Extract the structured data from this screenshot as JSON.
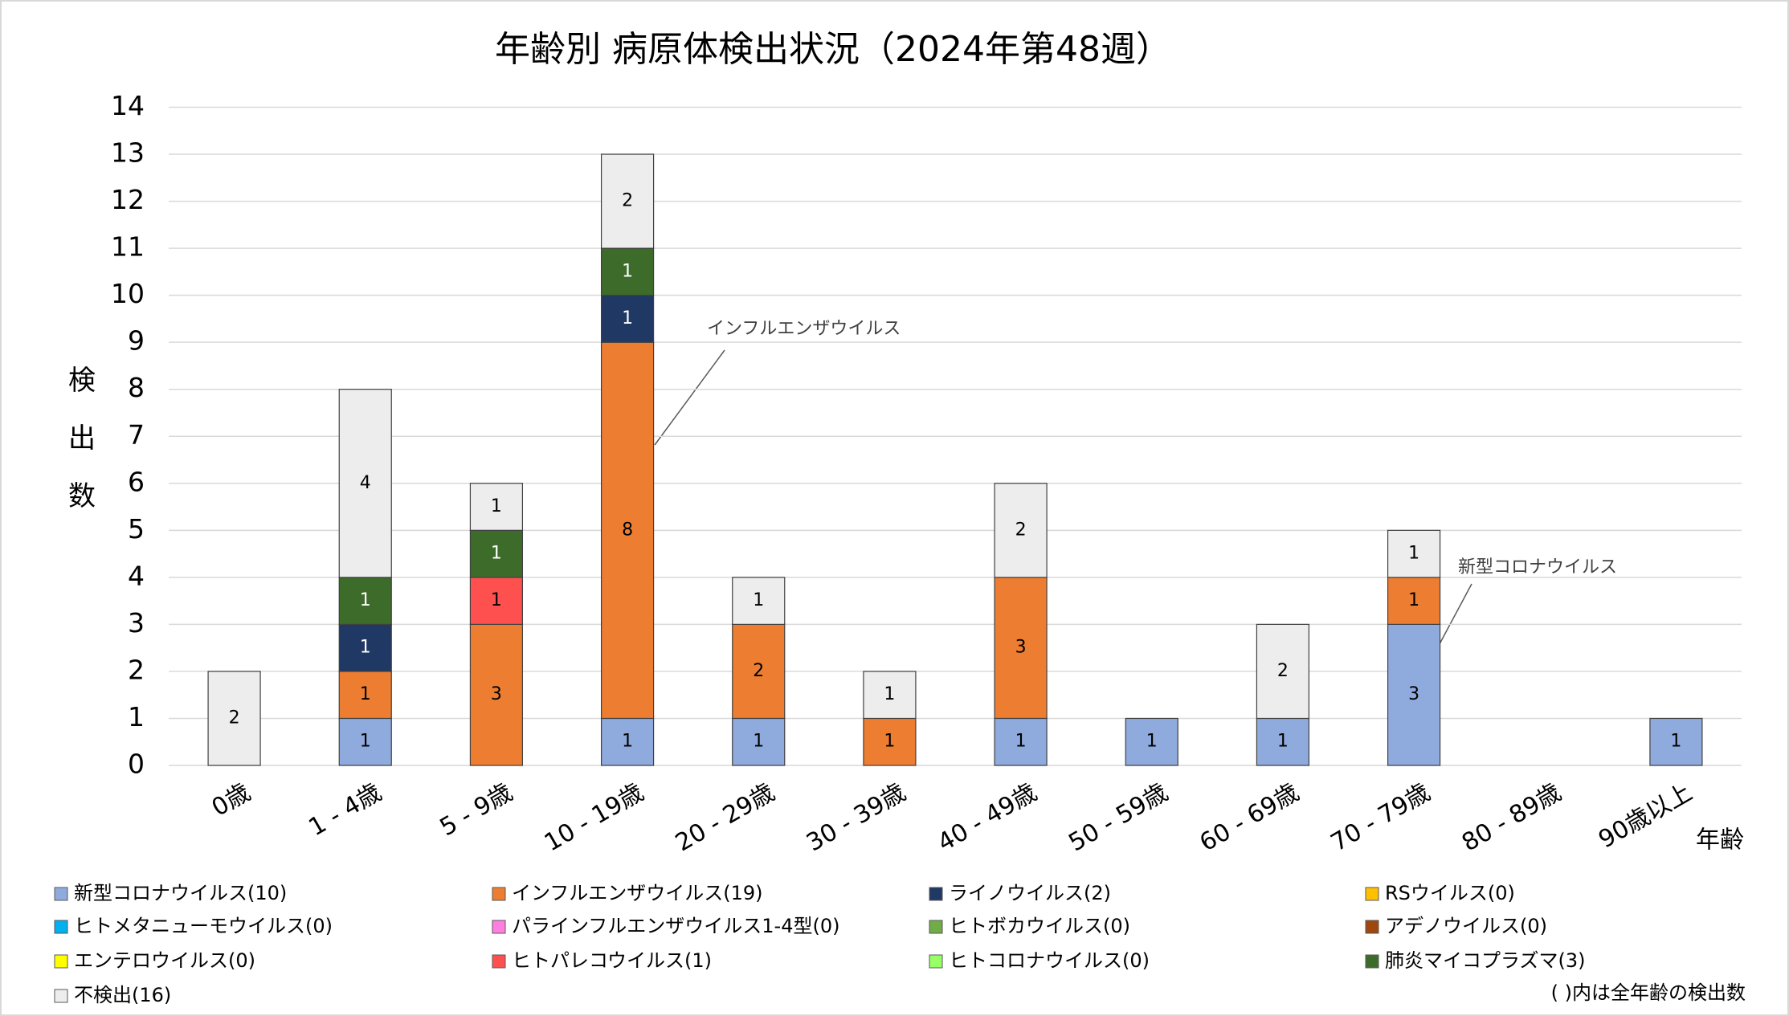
{
  "chart_data": {
    "type": "stacked_bar",
    "title": "年齢別 病原体検出状況（2024年第48週）",
    "y_label": "検出数",
    "x_label": "年齢",
    "note": "( )内は全年齢の検出数",
    "annotations": [
      "インフルエンザウイルス",
      "新型コロナウイルス"
    ],
    "categories": [
      "0歳",
      "1 - 4歳",
      "5 - 9歳",
      "10 - 19歳",
      "20 - 29歳",
      "30 - 39歳",
      "40 - 49歳",
      "50 - 59歳",
      "60 - 69歳",
      "70 - 79歳",
      "80 - 89歳",
      "90歳以上"
    ],
    "series": [
      {
        "name": "新型コロナウイルス(10)",
        "color": "#8faadc",
        "values": [
          0,
          1,
          0,
          1,
          1,
          0,
          1,
          1,
          1,
          3,
          0,
          1
        ]
      },
      {
        "name": "インフルエンザウイルス(19)",
        "color": "#ed7d31",
        "values": [
          0,
          1,
          3,
          8,
          2,
          1,
          3,
          0,
          0,
          1,
          0,
          0
        ]
      },
      {
        "name": "ライノウイルス(2)",
        "color": "#203864",
        "values": [
          0,
          1,
          0,
          1,
          0,
          0,
          0,
          0,
          0,
          0,
          0,
          0
        ]
      },
      {
        "name": "RSウイルス(0)",
        "color": "#ffc000",
        "values": [
          0,
          0,
          0,
          0,
          0,
          0,
          0,
          0,
          0,
          0,
          0,
          0
        ]
      },
      {
        "name": "ヒトメタニューモウイルス(0)",
        "color": "#00b0f0",
        "values": [
          0,
          0,
          0,
          0,
          0,
          0,
          0,
          0,
          0,
          0,
          0,
          0
        ]
      },
      {
        "name": "パラインフルエンザウイルス1-4型(0)",
        "color": "#ff7fe0",
        "values": [
          0,
          0,
          0,
          0,
          0,
          0,
          0,
          0,
          0,
          0,
          0,
          0
        ]
      },
      {
        "name": "ヒトボカウイルス(0)",
        "color": "#70ad47",
        "values": [
          0,
          0,
          0,
          0,
          0,
          0,
          0,
          0,
          0,
          0,
          0,
          0
        ]
      },
      {
        "name": "アデノウイルス(0)",
        "color": "#9e480e",
        "values": [
          0,
          0,
          0,
          0,
          0,
          0,
          0,
          0,
          0,
          0,
          0,
          0
        ]
      },
      {
        "name": "エンテロウイルス(0)",
        "color": "#ffff00",
        "values": [
          0,
          0,
          0,
          0,
          0,
          0,
          0,
          0,
          0,
          0,
          0,
          0
        ]
      },
      {
        "name": "ヒトパレコウイルス(1)",
        "color": "#ff5050",
        "values": [
          0,
          0,
          1,
          0,
          0,
          0,
          0,
          0,
          0,
          0,
          0,
          0
        ]
      },
      {
        "name": "ヒトコロナウイルス(0)",
        "color": "#99ff66",
        "values": [
          0,
          0,
          0,
          0,
          0,
          0,
          0,
          0,
          0,
          0,
          0,
          0
        ]
      },
      {
        "name": "肺炎マイコプラズマ(3)",
        "color": "#3d6b2a",
        "values": [
          0,
          1,
          1,
          1,
          0,
          0,
          0,
          0,
          0,
          0,
          0,
          0
        ]
      },
      {
        "name": "不検出(16)",
        "color": "#ededed",
        "values": [
          2,
          4,
          1,
          2,
          1,
          1,
          2,
          0,
          2,
          1,
          0,
          0
        ]
      }
    ],
    "ylim": [
      0,
      14
    ],
    "yticks": [
      0,
      1,
      2,
      3,
      4,
      5,
      6,
      7,
      8,
      9,
      10,
      11,
      12,
      13,
      14
    ],
    "grid": true
  }
}
